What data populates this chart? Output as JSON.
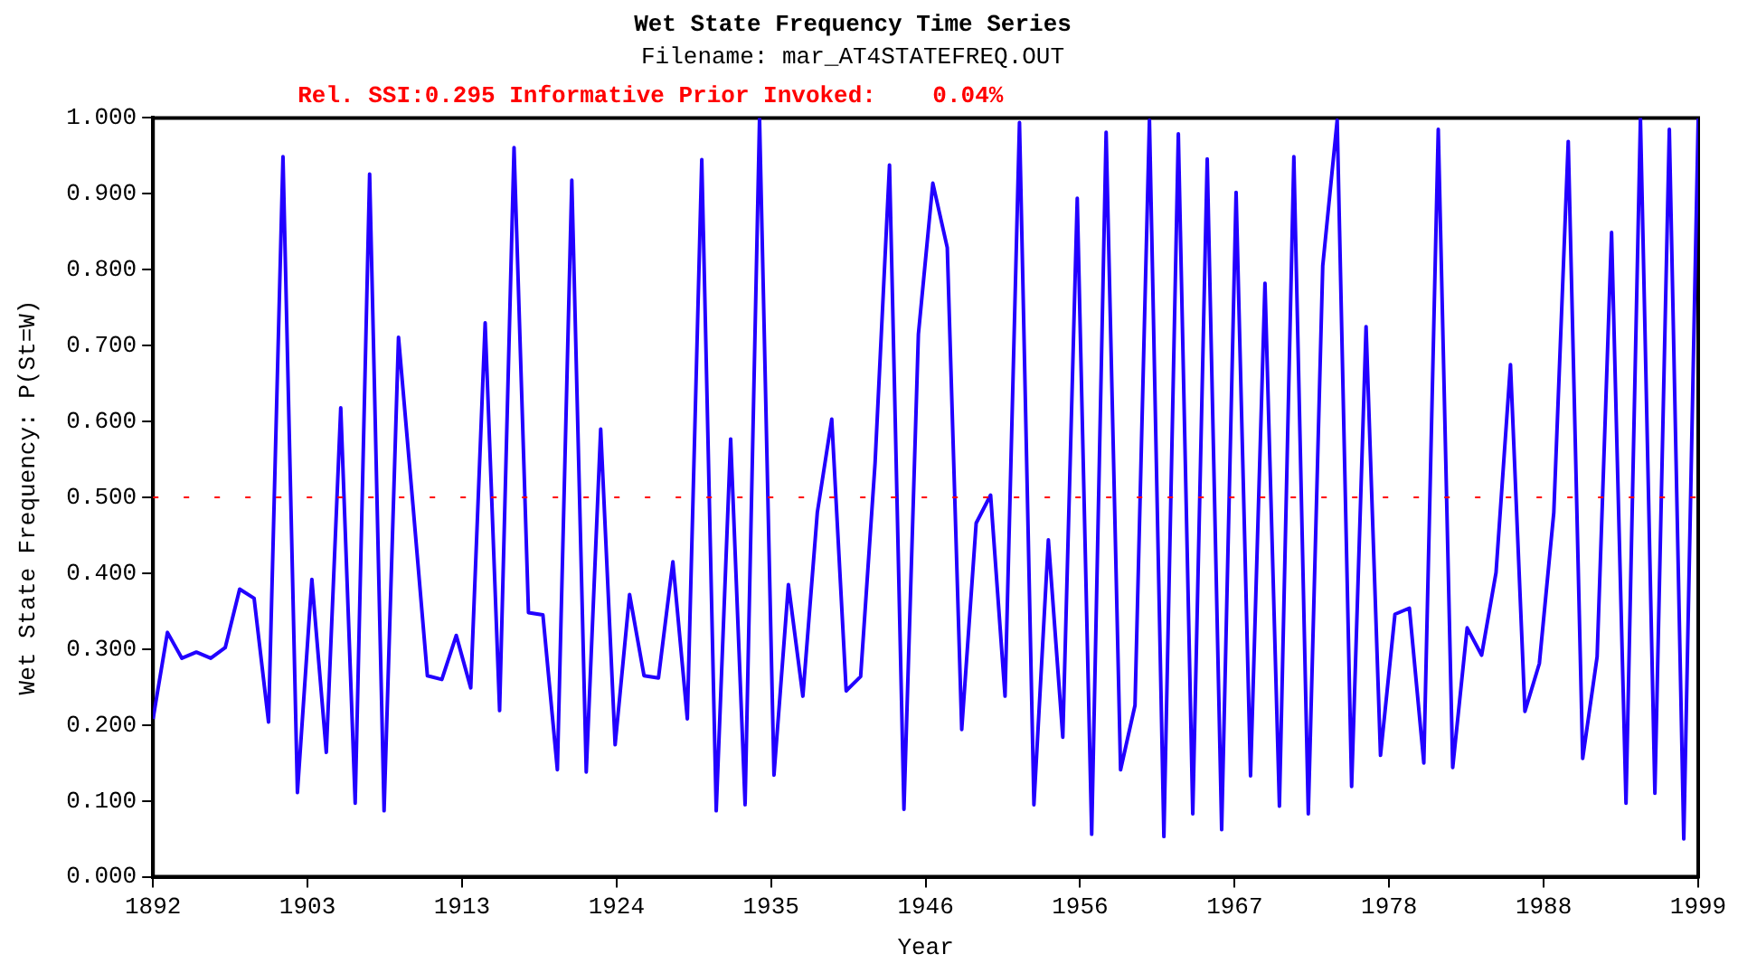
{
  "chart_data": {
    "type": "line",
    "title": "Wet State Frequency Time Series",
    "subtitle": "Filename: mar_AT4STATEFREQ.OUT",
    "xlabel": "Year",
    "ylabel": "Wet State Frequency: P(St=W)",
    "annotations": [
      "Rel. SSI:0.295 Informative Prior Invoked:    0.04%"
    ],
    "x": [
      1892,
      1893,
      1894,
      1895,
      1896,
      1897,
      1898,
      1899,
      1900,
      1901,
      1902,
      1903,
      1904,
      1905,
      1906,
      1907,
      1908,
      1909,
      1910,
      1911,
      1912,
      1913,
      1914,
      1915,
      1916,
      1917,
      1918,
      1919,
      1920,
      1921,
      1922,
      1923,
      1924,
      1925,
      1926,
      1927,
      1928,
      1929,
      1930,
      1931,
      1932,
      1933,
      1934,
      1935,
      1936,
      1937,
      1938,
      1939,
      1940,
      1941,
      1942,
      1943,
      1944,
      1945,
      1946,
      1947,
      1948,
      1949,
      1950,
      1951,
      1952,
      1953,
      1954,
      1955,
      1956,
      1957,
      1958,
      1959,
      1960,
      1961,
      1962,
      1963,
      1964,
      1965,
      1966,
      1967,
      1968,
      1969,
      1970,
      1971,
      1972,
      1973,
      1974,
      1975,
      1976,
      1977,
      1978,
      1979,
      1980,
      1981,
      1982,
      1983,
      1984,
      1985,
      1986,
      1987,
      1988,
      1989,
      1990,
      1991,
      1992,
      1993,
      1994,
      1995,
      1996,
      1997,
      1998,
      1999
    ],
    "series": [
      {
        "color": "#2200ff",
        "values": [
          0.208,
          0.322,
          0.288,
          0.296,
          0.288,
          0.302,
          0.379,
          0.367,
          0.204,
          0.949,
          0.111,
          0.392,
          0.164,
          0.618,
          0.097,
          0.926,
          0.087,
          0.711,
          0.49,
          0.265,
          0.26,
          0.318,
          0.249,
          0.73,
          0.219,
          0.961,
          0.348,
          0.345,
          0.141,
          0.918,
          0.138,
          0.59,
          0.174,
          0.372,
          0.265,
          0.262,
          0.415,
          0.208,
          0.945,
          0.087,
          0.577,
          0.095,
          0.999,
          0.134,
          0.385,
          0.238,
          0.48,
          0.603,
          0.245,
          0.264,
          0.545,
          0.938,
          0.089,
          0.715,
          0.914,
          0.829,
          0.194,
          0.466,
          0.503,
          0.238,
          0.994,
          0.095,
          0.444,
          0.184,
          0.894,
          0.056,
          0.981,
          0.141,
          0.226,
          0.997,
          0.053,
          0.979,
          0.083,
          0.946,
          0.062,
          0.902,
          0.133,
          0.782,
          0.093,
          0.949,
          0.083,
          0.805,
          0.997,
          0.119,
          0.725,
          0.16,
          0.346,
          0.354,
          0.15,
          0.985,
          0.144,
          0.328,
          0.292,
          0.401,
          0.675,
          0.218,
          0.281,
          0.48,
          0.969,
          0.156,
          0.29,
          0.849,
          0.097,
          0.999,
          0.11,
          0.985,
          0.05,
          0.999
        ]
      }
    ],
    "xlim": [
      1892,
      1999
    ],
    "xticks": [
      1892,
      {
        "value": 1902.7,
        "label": "1903"
      },
      {
        "value": 1913.4,
        "label": "1913"
      },
      {
        "value": 1924.1,
        "label": "1924"
      },
      {
        "value": 1934.8,
        "label": "1935"
      },
      {
        "value": 1945.5,
        "label": "1946"
      },
      {
        "value": 1956.2,
        "label": "1956"
      },
      {
        "value": 1966.9,
        "label": "1967"
      },
      {
        "value": 1977.6,
        "label": "1978"
      },
      {
        "value": 1988.3,
        "label": "1988"
      },
      1999
    ],
    "ylim": [
      0,
      1
    ],
    "yticks": [
      {
        "value": 0,
        "label": "0.000"
      },
      {
        "value": 0.1,
        "label": "0.100"
      },
      {
        "value": 0.2,
        "label": "0.200"
      },
      {
        "value": 0.3,
        "label": "0.300"
      },
      {
        "value": 0.4,
        "label": "0.400"
      },
      {
        "value": 0.5,
        "label": "0.500"
      },
      {
        "value": 0.6,
        "label": "0.600"
      },
      {
        "value": 0.7,
        "label": "0.700"
      },
      {
        "value": 0.8,
        "label": "0.800"
      },
      {
        "value": 0.9,
        "label": "0.900"
      },
      {
        "value": 1,
        "label": "1.000"
      }
    ],
    "ref_lines": [
      {
        "axis": "y",
        "value": 0.5,
        "color": "#ff0000",
        "line_style": "dashed"
      }
    ],
    "grid": false,
    "legend": false,
    "marker": "none",
    "line_style": "solid"
  }
}
